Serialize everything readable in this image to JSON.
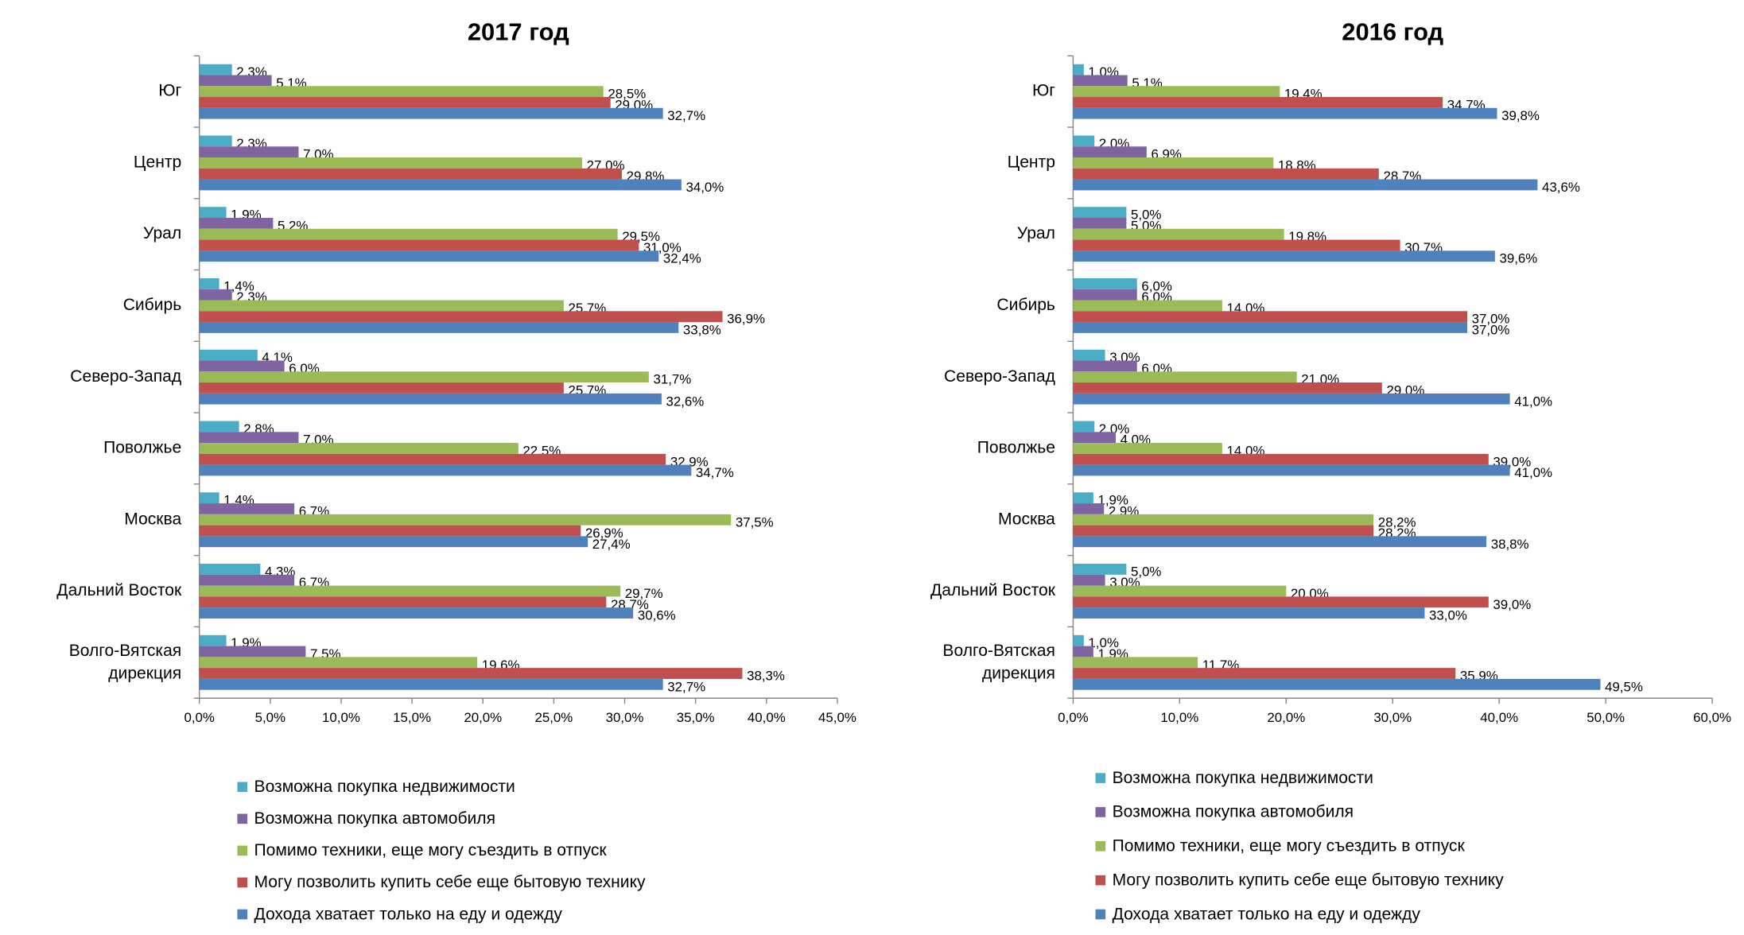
{
  "chart_data": [
    {
      "type": "bar",
      "orientation": "horizontal",
      "title": "2017 год",
      "categories": [
        "Юг",
        "Центр",
        "Урал",
        "Сибирь",
        "Северо-Запад",
        "Поволжье",
        "Москва",
        "Дальний Восток",
        "Волго-Вятская дирекция"
      ],
      "series": [
        {
          "name": "Возможна покупка недвижимости",
          "color": "#4bacc6",
          "values": [
            2.3,
            2.3,
            1.9,
            1.4,
            4.1,
            2.8,
            1.4,
            4.3,
            1.9
          ],
          "value_labels": [
            "2,3%",
            "2,3%",
            "1,9%",
            "1,4%",
            "4,1%",
            "2,8%",
            "1,4%",
            "4,3%",
            "1,9%"
          ]
        },
        {
          "name": "Возможна покупка автомобиля",
          "color": "#8064a2",
          "values": [
            5.1,
            7.0,
            5.2,
            2.3,
            6.0,
            7.0,
            6.7,
            6.7,
            7.5
          ],
          "value_labels": [
            "5,1%",
            "7,0%",
            "5,2%",
            "2,3%",
            "6,0%",
            "7,0%",
            "6,7%",
            "6,7%",
            "7,5%"
          ]
        },
        {
          "name": "Помимо техники, еще могу съездить в отпуск",
          "color": "#9bbb59",
          "values": [
            28.5,
            27.0,
            29.5,
            25.7,
            31.7,
            22.5,
            37.5,
            29.7,
            19.6
          ],
          "value_labels": [
            "28,5%",
            "27,0%",
            "29,5%",
            "25,7%",
            "31,7%",
            "22,5%",
            "37,5%",
            "29,7%",
            "19,6%"
          ]
        },
        {
          "name": "Могу позволить купить себе еще бытовую технику",
          "color": "#c0504d",
          "values": [
            29.0,
            29.8,
            31.0,
            36.9,
            25.7,
            32.9,
            26.9,
            28.7,
            38.3
          ],
          "value_labels": [
            "29,0%",
            "29,8%",
            "31,0%",
            "36,9%",
            "25,7%",
            "32,9%",
            "26,9%",
            "28,7%",
            "38,3%"
          ]
        },
        {
          "name": "Дохода хватает только на еду и одежду",
          "color": "#4f81bd",
          "values": [
            32.7,
            34.0,
            32.4,
            33.8,
            32.6,
            34.7,
            27.4,
            30.6,
            32.7
          ],
          "value_labels": [
            "32,7%",
            "34,0%",
            "32,4%",
            "33,8%",
            "32,6%",
            "34,7%",
            "27,4%",
            "30,6%",
            "32,7%"
          ]
        }
      ],
      "xlim": [
        0,
        45
      ],
      "xticks": [
        {
          "value": 0,
          "label": "0,0%"
        },
        {
          "value": 5,
          "label": "5,0%"
        },
        {
          "value": 10,
          "label": "10,0%"
        },
        {
          "value": 15,
          "label": "15,0%"
        },
        {
          "value": 20,
          "label": "20,0%"
        },
        {
          "value": 25,
          "label": "25,0%"
        },
        {
          "value": 30,
          "label": "30,0%"
        },
        {
          "value": 35,
          "label": "35,0%"
        },
        {
          "value": 40,
          "label": "40,0%"
        },
        {
          "value": 45,
          "label": "45,0%"
        }
      ],
      "grid": false,
      "legend": "bottom"
    },
    {
      "type": "bar",
      "orientation": "horizontal",
      "title": "2016 год",
      "categories": [
        "Юг",
        "Центр",
        "Урал",
        "Сибирь",
        "Северо-Запад",
        "Поволжье",
        "Москва",
        "Дальний Восток",
        "Волго-Вятская дирекция"
      ],
      "series": [
        {
          "name": "Возможна покупка недвижимости",
          "color": "#4bacc6",
          "values": [
            1.0,
            2.0,
            5.0,
            6.0,
            3.0,
            2.0,
            1.9,
            5.0,
            1.0
          ],
          "value_labels": [
            "1,0%",
            "2,0%",
            "5,0%",
            "6,0%",
            "3,0%",
            "2,0%",
            "1,9%",
            "5,0%",
            "1,0%"
          ]
        },
        {
          "name": "Возможна покупка автомобиля",
          "color": "#8064a2",
          "values": [
            5.1,
            6.9,
            5.0,
            6.0,
            6.0,
            4.0,
            2.9,
            3.0,
            1.9
          ],
          "value_labels": [
            "5,1%",
            "6,9%",
            "5,0%",
            "6,0%",
            "6,0%",
            "4,0%",
            "2,9%",
            "3,0%",
            "1,9%"
          ]
        },
        {
          "name": "Помимо техники, еще могу съездить в отпуск",
          "color": "#9bbb59",
          "values": [
            19.4,
            18.8,
            19.8,
            14.0,
            21.0,
            14.0,
            28.2,
            20.0,
            11.7
          ],
          "value_labels": [
            "19,4%",
            "18,8%",
            "19,8%",
            "14,0%",
            "21,0%",
            "14,0%",
            "28,2%",
            "20,0%",
            "11,7%"
          ]
        },
        {
          "name": "Могу позволить купить себе еще бытовую технику",
          "color": "#c0504d",
          "values": [
            34.7,
            28.7,
            30.7,
            37.0,
            29.0,
            39.0,
            28.2,
            39.0,
            35.9
          ],
          "value_labels": [
            "34,7%",
            "28,7%",
            "30,7%",
            "37,0%",
            "29,0%",
            "39,0%",
            "28,2%",
            "39,0%",
            "35,9%"
          ]
        },
        {
          "name": "Дохода хватает только на еду и одежду",
          "color": "#4f81bd",
          "values": [
            39.8,
            43.6,
            39.6,
            37.0,
            41.0,
            41.0,
            38.8,
            33.0,
            49.5
          ],
          "value_labels": [
            "39,8%",
            "43,6%",
            "39,6%",
            "37,0%",
            "41,0%",
            "41,0%",
            "38,8%",
            "33,0%",
            "49,5%"
          ]
        }
      ],
      "xlim": [
        0,
        60
      ],
      "xticks": [
        {
          "value": 0,
          "label": "0,0%"
        },
        {
          "value": 10,
          "label": "10,0%"
        },
        {
          "value": 20,
          "label": "20,0%"
        },
        {
          "value": 30,
          "label": "30,0%"
        },
        {
          "value": 40,
          "label": "40,0%"
        },
        {
          "value": 50,
          "label": "50,0%"
        },
        {
          "value": 60,
          "label": "60,0%"
        }
      ],
      "grid": false,
      "legend": "bottom"
    }
  ]
}
